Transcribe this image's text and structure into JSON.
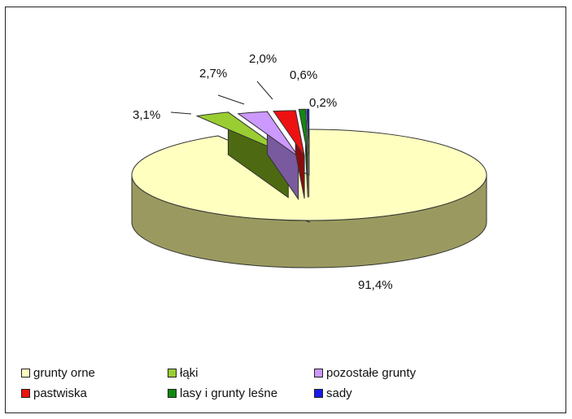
{
  "chart_data": {
    "type": "pie",
    "title": "",
    "slices": [
      {
        "name": "grunty orne",
        "value": 91.4,
        "label": "91,4%",
        "color": "#ffffc0",
        "side": "#9a9a60"
      },
      {
        "name": "łąki",
        "value": 3.1,
        "label": "3,1%",
        "color": "#9acd32",
        "side": "#4d6a12"
      },
      {
        "name": "pozostałe grunty",
        "value": 2.7,
        "label": "2,7%",
        "color": "#cc99ff",
        "side": "#7a5a9e"
      },
      {
        "name": "pastwiska",
        "value": 2.0,
        "label": "2,0%",
        "color": "#ee1111",
        "side": "#8a0c0c"
      },
      {
        "name": "lasy i grunty leśne",
        "value": 0.6,
        "label": "0,6%",
        "color": "#118811",
        "side": "#0a4d0a"
      },
      {
        "name": "sady",
        "value": 0.2,
        "label": "0,2%",
        "color": "#1a1aee",
        "side": "#0c0c80"
      }
    ],
    "legend_placement": "bottom"
  },
  "legend": {
    "items": [
      {
        "label": "grunty orne",
        "color": "#ffffc0"
      },
      {
        "label": "łąki",
        "color": "#9acd32"
      },
      {
        "label": "pozostałe grunty",
        "color": "#cc99ff"
      },
      {
        "label": "pastwiska",
        "color": "#ee1111"
      },
      {
        "label": "lasy i grunty leśne",
        "color": "#118811"
      },
      {
        "label": "sady",
        "color": "#1a1aee"
      }
    ]
  }
}
